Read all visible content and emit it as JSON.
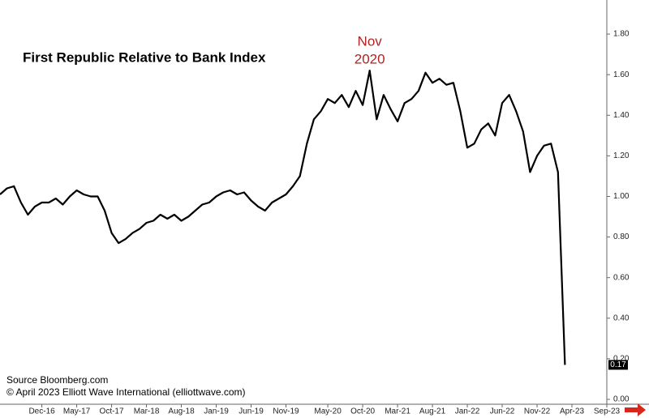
{
  "chart_data": {
    "type": "line",
    "title": "First Republic Relative to Bank Index",
    "annotation": {
      "x": "Nov-20",
      "lines": [
        "Nov",
        "2020"
      ],
      "color": "#b22222"
    },
    "source": "Source Bloomberg.com",
    "copyright": "© April 2023 Elliott Wave International (elliottwave.com)",
    "color": "#000000",
    "x": [
      "Jun-16",
      "Jul-16",
      "Aug-16",
      "Sep-16",
      "Oct-16",
      "Nov-16",
      "Dec-16",
      "Jan-17",
      "Feb-17",
      "Mar-17",
      "Apr-17",
      "May-17",
      "Jun-17",
      "Jul-17",
      "Aug-17",
      "Sep-17",
      "Oct-17",
      "Nov-17",
      "Dec-17",
      "Jan-18",
      "Feb-18",
      "Mar-18",
      "Apr-18",
      "May-18",
      "Jun-18",
      "Jul-18",
      "Aug-18",
      "Sep-18",
      "Oct-18",
      "Nov-18",
      "Dec-18",
      "Jan-19",
      "Feb-19",
      "Mar-19",
      "Apr-19",
      "May-19",
      "Jun-19",
      "Jul-19",
      "Aug-19",
      "Sep-19",
      "Oct-19",
      "Nov-19",
      "Dec-19",
      "Jan-20",
      "Feb-20",
      "Mar-20",
      "Apr-20",
      "May-20",
      "Jun-20",
      "Jul-20",
      "Aug-20",
      "Sep-20",
      "Oct-20",
      "Nov-20",
      "Dec-20",
      "Jan-21",
      "Feb-21",
      "Mar-21",
      "Apr-21",
      "May-21",
      "Jun-21",
      "Jul-21",
      "Aug-21",
      "Sep-21",
      "Oct-21",
      "Nov-21",
      "Dec-21",
      "Jan-22",
      "Feb-22",
      "Mar-22",
      "Apr-22",
      "May-22",
      "Jun-22",
      "Jul-22",
      "Aug-22",
      "Sep-22",
      "Oct-22",
      "Nov-22",
      "Dec-22",
      "Jan-23",
      "Feb-23",
      "Mar-23"
    ],
    "values": [
      1.01,
      1.04,
      1.05,
      0.97,
      0.91,
      0.95,
      0.97,
      0.97,
      0.99,
      0.96,
      1.0,
      1.03,
      1.01,
      1.0,
      1.0,
      0.93,
      0.82,
      0.77,
      0.79,
      0.82,
      0.84,
      0.87,
      0.88,
      0.91,
      0.89,
      0.91,
      0.88,
      0.9,
      0.93,
      0.96,
      0.97,
      1.0,
      1.02,
      1.03,
      1.01,
      1.02,
      0.98,
      0.95,
      0.93,
      0.97,
      0.99,
      1.01,
      1.05,
      1.1,
      1.26,
      1.38,
      1.42,
      1.48,
      1.46,
      1.5,
      1.44,
      1.52,
      1.45,
      1.62,
      1.38,
      1.5,
      1.43,
      1.37,
      1.46,
      1.48,
      1.52,
      1.61,
      1.56,
      1.58,
      1.55,
      1.56,
      1.42,
      1.24,
      1.26,
      1.33,
      1.36,
      1.3,
      1.46,
      1.5,
      1.42,
      1.32,
      1.12,
      1.2,
      1.25,
      1.26,
      1.12,
      0.17
    ],
    "xlim": [
      "Jun-16",
      "Sep-23"
    ],
    "xticks": [
      "Dec-16",
      "May-17",
      "Oct-17",
      "Mar-18",
      "Aug-18",
      "Jan-19",
      "Jun-19",
      "Nov-19",
      "May-20",
      "Oct-20",
      "Mar-21",
      "Aug-21",
      "Jan-22",
      "Jun-22",
      "Nov-22",
      "Apr-23",
      "Sep-23"
    ],
    "ylim": [
      0,
      1.9
    ],
    "yticks": [
      {
        "value": 0,
        "label": "0.00"
      },
      {
        "value": 0.2,
        "label": "0.20"
      },
      {
        "value": 0.4,
        "label": "0.40"
      },
      {
        "value": 0.6,
        "label": "0.60"
      },
      {
        "value": 0.8,
        "label": "0.80"
      },
      {
        "value": 1,
        "label": "1.00"
      },
      {
        "value": 1.2,
        "label": "1.20"
      },
      {
        "value": 1.4,
        "label": "1.40"
      },
      {
        "value": 1.6,
        "label": "1.60"
      },
      {
        "value": 1.8,
        "label": "1.80"
      }
    ]
  }
}
